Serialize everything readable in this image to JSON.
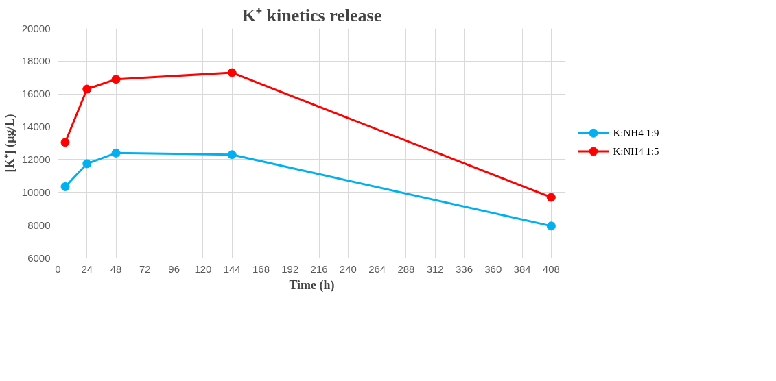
{
  "chart_data": {
    "type": "line",
    "title": "K⁺ kinetics release",
    "xlabel": "Time (h)",
    "ylabel": "[K⁺] (µg/L)",
    "x": [
      6,
      24,
      48,
      144,
      408
    ],
    "series": [
      {
        "name": "K:NH4 1:9",
        "color": "#00b0f0",
        "values": [
          10350,
          11750,
          12400,
          12300,
          7950
        ]
      },
      {
        "name": "K:NH4 1:5",
        "color": "#ff0000",
        "values": [
          13050,
          16300,
          16900,
          17300,
          9700
        ]
      }
    ],
    "xlim": [
      0,
      420
    ],
    "xticks": [
      0,
      24,
      48,
      72,
      96,
      120,
      144,
      168,
      192,
      216,
      240,
      264,
      288,
      312,
      336,
      360,
      384,
      408
    ],
    "ylim": [
      6000,
      20000
    ],
    "yticks": [
      6000,
      8000,
      10000,
      12000,
      14000,
      16000,
      18000,
      20000
    ],
    "grid": true,
    "legend": "right",
    "marker": "circle",
    "line_style": "solid"
  }
}
